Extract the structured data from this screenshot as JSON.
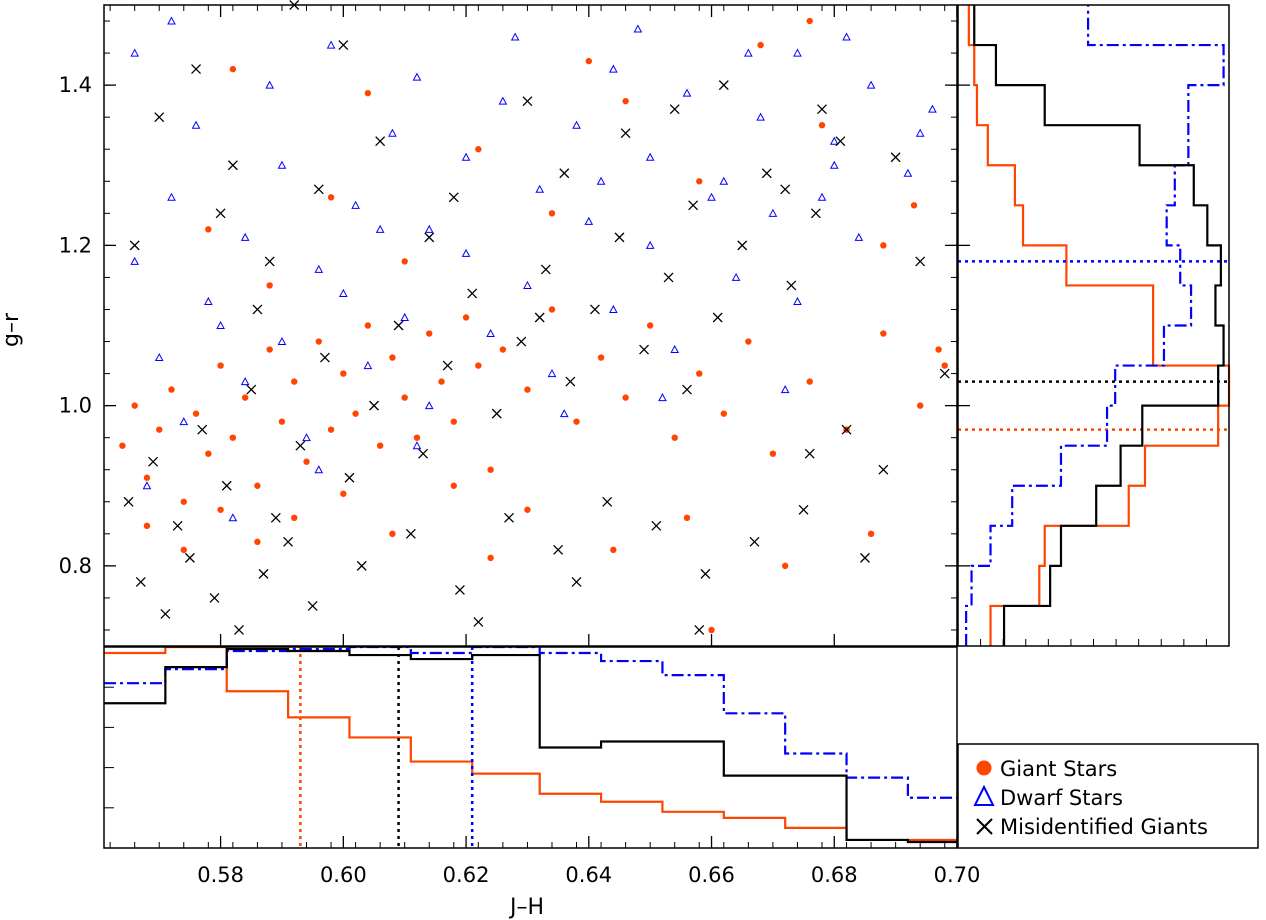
{
  "chart_data": {
    "type": "scatter",
    "xlabel": "J–H",
    "ylabel": "g–r",
    "xlim": [
      0.561,
      0.7
    ],
    "ylim": [
      0.7,
      1.5
    ],
    "xticks": [
      "0.58",
      "0.60",
      "0.62",
      "0.64",
      "0.66",
      "0.68",
      "0.70"
    ],
    "yticks": [
      "0.8",
      "1.0",
      "1.2",
      "1.4"
    ],
    "legend": {
      "position": "bottom-right",
      "entries": [
        "Giant Stars",
        "Dwarf Stars",
        "Misidentified Giants"
      ]
    },
    "colors": {
      "giant": "#ff4500",
      "dwarf": "#0000ff",
      "misidentified": "#000000"
    },
    "series": [
      {
        "name": "Giant Stars",
        "marker": "filled-circle",
        "points": [
          [
            0.564,
            0.95
          ],
          [
            0.566,
            1.0
          ],
          [
            0.568,
            0.91
          ],
          [
            0.57,
            0.97
          ],
          [
            0.572,
            1.02
          ],
          [
            0.574,
            0.88
          ],
          [
            0.576,
            0.99
          ],
          [
            0.578,
            0.94
          ],
          [
            0.58,
            1.05
          ],
          [
            0.582,
            0.96
          ],
          [
            0.584,
            1.01
          ],
          [
            0.586,
            0.9
          ],
          [
            0.588,
            1.07
          ],
          [
            0.59,
            0.98
          ],
          [
            0.592,
            1.03
          ],
          [
            0.594,
            0.93
          ],
          [
            0.596,
            1.08
          ],
          [
            0.598,
            0.97
          ],
          [
            0.6,
            1.04
          ],
          [
            0.602,
            0.99
          ],
          [
            0.604,
            1.1
          ],
          [
            0.606,
            0.95
          ],
          [
            0.608,
            1.06
          ],
          [
            0.61,
            1.01
          ],
          [
            0.612,
            0.96
          ],
          [
            0.614,
            1.09
          ],
          [
            0.616,
            1.03
          ],
          [
            0.618,
            0.98
          ],
          [
            0.62,
            1.11
          ],
          [
            0.622,
            1.05
          ],
          [
            0.624,
            0.92
          ],
          [
            0.626,
            1.07
          ],
          [
            0.63,
            1.02
          ],
          [
            0.634,
            1.12
          ],
          [
            0.638,
            0.98
          ],
          [
            0.642,
            1.06
          ],
          [
            0.646,
            1.01
          ],
          [
            0.65,
            1.1
          ],
          [
            0.654,
            0.96
          ],
          [
            0.658,
            1.04
          ],
          [
            0.662,
            0.99
          ],
          [
            0.666,
            1.08
          ],
          [
            0.67,
            0.94
          ],
          [
            0.676,
            1.03
          ],
          [
            0.682,
            0.97
          ],
          [
            0.688,
            1.09
          ],
          [
            0.694,
            1.0
          ],
          [
            0.698,
            1.05
          ],
          [
            0.568,
            0.85
          ],
          [
            0.574,
            0.82
          ],
          [
            0.58,
            0.87
          ],
          [
            0.586,
            0.83
          ],
          [
            0.592,
            0.86
          ],
          [
            0.6,
            0.89
          ],
          [
            0.608,
            0.84
          ],
          [
            0.618,
            0.9
          ],
          [
            0.63,
            0.87
          ],
          [
            0.644,
            0.82
          ],
          [
            0.656,
            0.86
          ],
          [
            0.672,
            0.8
          ],
          [
            0.686,
            0.84
          ],
          [
            0.578,
            1.22
          ],
          [
            0.588,
            1.15
          ],
          [
            0.598,
            1.26
          ],
          [
            0.61,
            1.18
          ],
          [
            0.622,
            1.32
          ],
          [
            0.634,
            1.24
          ],
          [
            0.646,
            1.38
          ],
          [
            0.658,
            1.28
          ],
          [
            0.668,
            1.45
          ],
          [
            0.678,
            1.35
          ],
          [
            0.688,
            1.2
          ],
          [
            0.582,
            1.42
          ],
          [
            0.604,
            1.39
          ],
          [
            0.64,
            1.43
          ],
          [
            0.676,
            1.48
          ],
          [
            0.693,
            1.25
          ],
          [
            0.697,
            1.07
          ],
          [
            0.66,
            0.72
          ],
          [
            0.624,
            0.81
          ]
        ]
      },
      {
        "name": "Dwarf Stars",
        "marker": "open-triangle",
        "points": [
          [
            0.566,
            1.18
          ],
          [
            0.572,
            1.26
          ],
          [
            0.578,
            1.13
          ],
          [
            0.584,
            1.21
          ],
          [
            0.59,
            1.3
          ],
          [
            0.596,
            1.17
          ],
          [
            0.602,
            1.25
          ],
          [
            0.608,
            1.34
          ],
          [
            0.614,
            1.22
          ],
          [
            0.62,
            1.31
          ],
          [
            0.626,
            1.38
          ],
          [
            0.632,
            1.27
          ],
          [
            0.638,
            1.35
          ],
          [
            0.644,
            1.42
          ],
          [
            0.65,
            1.31
          ],
          [
            0.656,
            1.39
          ],
          [
            0.662,
            1.28
          ],
          [
            0.668,
            1.36
          ],
          [
            0.674,
            1.44
          ],
          [
            0.68,
            1.33
          ],
          [
            0.686,
            1.4
          ],
          [
            0.692,
            1.29
          ],
          [
            0.696,
            1.37
          ],
          [
            0.57,
            1.06
          ],
          [
            0.58,
            1.1
          ],
          [
            0.59,
            1.08
          ],
          [
            0.6,
            1.14
          ],
          [
            0.61,
            1.11
          ],
          [
            0.62,
            1.19
          ],
          [
            0.63,
            1.15
          ],
          [
            0.64,
            1.23
          ],
          [
            0.65,
            1.2
          ],
          [
            0.66,
            1.26
          ],
          [
            0.67,
            1.24
          ],
          [
            0.68,
            1.3
          ],
          [
            0.574,
            0.98
          ],
          [
            0.584,
            1.03
          ],
          [
            0.594,
            0.96
          ],
          [
            0.604,
            1.05
          ],
          [
            0.614,
            1.0
          ],
          [
            0.624,
            1.09
          ],
          [
            0.634,
            1.04
          ],
          [
            0.644,
            1.12
          ],
          [
            0.654,
            1.07
          ],
          [
            0.664,
            1.16
          ],
          [
            0.674,
            1.13
          ],
          [
            0.684,
            1.21
          ],
          [
            0.576,
            1.35
          ],
          [
            0.588,
            1.4
          ],
          [
            0.598,
            1.45
          ],
          [
            0.612,
            1.41
          ],
          [
            0.628,
            1.46
          ],
          [
            0.648,
            1.47
          ],
          [
            0.666,
            1.44
          ],
          [
            0.682,
            1.46
          ],
          [
            0.568,
            0.9
          ],
          [
            0.582,
            0.86
          ],
          [
            0.596,
            0.92
          ],
          [
            0.612,
            0.95
          ],
          [
            0.636,
            0.99
          ],
          [
            0.652,
            1.01
          ],
          [
            0.672,
            1.02
          ],
          [
            0.566,
            1.44
          ],
          [
            0.572,
            1.48
          ],
          [
            0.606,
            1.22
          ],
          [
            0.642,
            1.28
          ],
          [
            0.678,
            1.26
          ],
          [
            0.694,
            1.34
          ]
        ]
      },
      {
        "name": "Misidentified Giants",
        "marker": "cross",
        "points": [
          [
            0.565,
            0.88
          ],
          [
            0.569,
            0.93
          ],
          [
            0.573,
            0.85
          ],
          [
            0.577,
            0.97
          ],
          [
            0.581,
            0.9
          ],
          [
            0.585,
            1.02
          ],
          [
            0.589,
            0.86
          ],
          [
            0.593,
            0.95
          ],
          [
            0.597,
            1.06
          ],
          [
            0.601,
            0.91
          ],
          [
            0.605,
            1.0
          ],
          [
            0.609,
            1.1
          ],
          [
            0.613,
            0.94
          ],
          [
            0.617,
            1.05
          ],
          [
            0.621,
            1.14
          ],
          [
            0.625,
            0.99
          ],
          [
            0.629,
            1.08
          ],
          [
            0.633,
            1.17
          ],
          [
            0.637,
            1.03
          ],
          [
            0.641,
            1.12
          ],
          [
            0.645,
            1.21
          ],
          [
            0.649,
            1.07
          ],
          [
            0.653,
            1.16
          ],
          [
            0.657,
            1.25
          ],
          [
            0.661,
            1.11
          ],
          [
            0.665,
            1.2
          ],
          [
            0.669,
            1.29
          ],
          [
            0.673,
            1.15
          ],
          [
            0.677,
            1.24
          ],
          [
            0.681,
            1.33
          ],
          [
            0.567,
            0.78
          ],
          [
            0.571,
            0.74
          ],
          [
            0.575,
            0.81
          ],
          [
            0.579,
            0.76
          ],
          [
            0.583,
            0.72
          ],
          [
            0.587,
            0.79
          ],
          [
            0.591,
            0.83
          ],
          [
            0.595,
            0.75
          ],
          [
            0.603,
            0.8
          ],
          [
            0.611,
            0.84
          ],
          [
            0.619,
            0.77
          ],
          [
            0.627,
            0.86
          ],
          [
            0.635,
            0.82
          ],
          [
            0.643,
            0.88
          ],
          [
            0.651,
            0.85
          ],
          [
            0.659,
            0.79
          ],
          [
            0.667,
            0.83
          ],
          [
            0.675,
            0.87
          ],
          [
            0.685,
            0.81
          ],
          [
            0.57,
            1.36
          ],
          [
            0.576,
            1.42
          ],
          [
            0.582,
            1.3
          ],
          [
            0.588,
            1.18
          ],
          [
            0.596,
            1.27
          ],
          [
            0.606,
            1.33
          ],
          [
            0.618,
            1.26
          ],
          [
            0.63,
            1.38
          ],
          [
            0.646,
            1.34
          ],
          [
            0.662,
            1.4
          ],
          [
            0.678,
            1.37
          ],
          [
            0.69,
            1.31
          ],
          [
            0.694,
            1.18
          ],
          [
            0.698,
            1.04
          ],
          [
            0.592,
            1.5
          ],
          [
            0.6,
            1.45
          ],
          [
            0.636,
            1.29
          ],
          [
            0.654,
            1.37
          ],
          [
            0.672,
            1.27
          ],
          [
            0.566,
            1.2
          ],
          [
            0.58,
            1.24
          ],
          [
            0.586,
            1.12
          ],
          [
            0.614,
            1.21
          ],
          [
            0.632,
            1.11
          ],
          [
            0.656,
            1.02
          ],
          [
            0.676,
            0.94
          ],
          [
            0.682,
            0.97
          ],
          [
            0.688,
            0.92
          ],
          [
            0.658,
            0.72
          ],
          [
            0.638,
            0.78
          ],
          [
            0.622,
            0.73
          ]
        ]
      }
    ],
    "side_histograms": {
      "right_gr": {
        "bin_edges": [
          0.7,
          0.75,
          0.8,
          0.85,
          0.9,
          0.95,
          1.0,
          1.05,
          1.1,
          1.15,
          1.2,
          1.25,
          1.3,
          1.35,
          1.4,
          1.45,
          1.5
        ],
        "series": [
          {
            "name": "Giant Stars",
            "line": "solid",
            "values": [
              0.12,
              0.3,
              0.32,
              0.63,
              0.69,
              0.96,
              1.0,
              0.72,
              0.72,
              0.4,
              0.24,
              0.21,
              0.11,
              0.07,
              0.06,
              0.04
            ],
            "mean": 0.97
          },
          {
            "name": "Dwarf Stars",
            "line": "dashdot",
            "values": [
              0.03,
              0.05,
              0.12,
              0.2,
              0.38,
              0.55,
              0.58,
              0.76,
              0.86,
              0.82,
              0.77,
              0.8,
              0.85,
              0.85,
              0.98,
              0.48
            ],
            "mean": 1.18
          },
          {
            "name": "Misidentified Giants",
            "line": "solid",
            "values": [
              0.17,
              0.34,
              0.38,
              0.51,
              0.6,
              0.68,
              0.96,
              0.98,
              0.95,
              0.97,
              0.92,
              0.87,
              0.67,
              0.32,
              0.14,
              0.06
            ],
            "mean": 1.03
          }
        ]
      },
      "bottom_jh": {
        "bin_edges": [
          0.561,
          0.571,
          0.581,
          0.591,
          0.601,
          0.611,
          0.621,
          0.632,
          0.642,
          0.652,
          0.662,
          0.672,
          0.682,
          0.692,
          0.7
        ],
        "series": [
          {
            "name": "Giant Stars",
            "line": "solid",
            "values": [
              0.97,
              1.0,
              0.78,
              0.65,
              0.55,
              0.43,
              0.37,
              0.27,
              0.23,
              0.18,
              0.15,
              0.1,
              0.04,
              0.04
            ],
            "mean": 0.593
          },
          {
            "name": "Dwarf Stars",
            "line": "dashdot",
            "values": [
              0.82,
              0.89,
              0.98,
              0.99,
              1.0,
              0.97,
              1.0,
              0.97,
              0.93,
              0.86,
              0.67,
              0.47,
              0.35,
              0.25
            ],
            "mean": 0.621
          },
          {
            "name": "Misidentified Giants",
            "line": "solid",
            "values": [
              0.72,
              0.9,
              0.99,
              0.98,
              0.96,
              0.94,
              0.96,
              0.5,
              0.53,
              0.53,
              0.36,
              0.36,
              0.04,
              0.03
            ],
            "mean": 0.609
          }
        ]
      }
    }
  }
}
